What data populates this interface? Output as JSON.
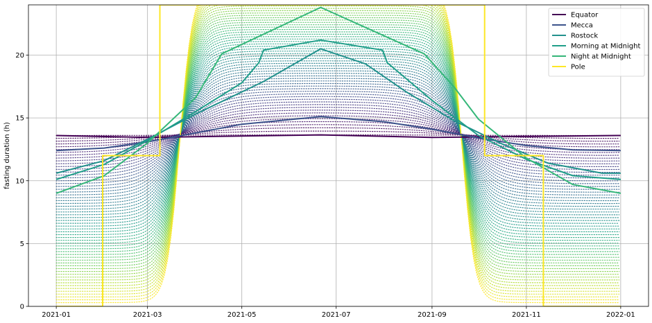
{
  "chart_data": {
    "type": "line",
    "title": "",
    "xlabel": "",
    "ylabel": "fasting duration (h)",
    "xlim": [
      "2020-12-14",
      "2022-01-19"
    ],
    "ylim": [
      0,
      24
    ],
    "grid": true,
    "legend_position": "top-right",
    "x_ticks": [
      "2021-01",
      "2021-03",
      "2021-05",
      "2021-07",
      "2021-09",
      "2021-11",
      "2022-01"
    ],
    "y_ticks": [
      0,
      5,
      10,
      15,
      20
    ],
    "background_dotted_latitudes": {
      "description_free": true,
      "count": 60,
      "from_value_at_jan1": 13.6,
      "to_value_at_jan1": 0.3,
      "colormap": "viridis"
    },
    "series": [
      {
        "name": "Equator",
        "color": "#440154",
        "x": [
          "2021-01-01",
          "2021-03-01",
          "2021-06-21",
          "2021-09-01",
          "2022-01-01"
        ],
        "y": [
          13.6,
          13.45,
          13.65,
          13.45,
          13.6
        ]
      },
      {
        "name": "Mecca",
        "color": "#3b528b",
        "x": [
          "2021-01-01",
          "2021-02-01",
          "2021-03-01",
          "2021-04-01",
          "2021-05-01",
          "2021-06-21",
          "2021-08-01",
          "2021-09-01",
          "2021-10-01",
          "2021-11-01",
          "2021-12-01",
          "2022-01-01"
        ],
        "y": [
          12.4,
          12.6,
          13.1,
          13.8,
          14.5,
          15.1,
          14.7,
          14.1,
          13.4,
          12.8,
          12.45,
          12.4
        ]
      },
      {
        "name": "Rostock",
        "color": "#21918c",
        "x": [
          "2021-01-01",
          "2021-02-01",
          "2021-03-01",
          "2021-04-01",
          "2021-05-15",
          "2021-06-21",
          "2021-07-20",
          "2021-08-15",
          "2021-09-15",
          "2021-10-15",
          "2021-11-15",
          "2021-12-20",
          "2022-01-01"
        ],
        "y": [
          10.6,
          11.6,
          13.3,
          15.3,
          17.9,
          20.5,
          19.3,
          17.1,
          14.8,
          13.0,
          11.4,
          10.6,
          10.6
        ]
      },
      {
        "name": "Morning at Midnight",
        "color": "#1f9e89",
        "x": [
          "2021-01-01",
          "2021-02-01",
          "2021-03-01",
          "2021-04-01",
          "2021-05-01",
          "2021-05-12",
          "2021-05-15",
          "2021-06-21",
          "2021-07-31",
          "2021-08-03",
          "2021-09-01",
          "2021-10-01",
          "2021-11-01",
          "2021-12-01",
          "2022-01-01"
        ],
        "y": [
          10.1,
          11.3,
          13.2,
          15.5,
          17.8,
          19.4,
          20.4,
          21.2,
          20.4,
          19.4,
          16.4,
          13.6,
          11.7,
          10.4,
          10.1
        ]
      },
      {
        "name": "Night at Midnight",
        "color": "#35b779",
        "x": [
          "2021-01-01",
          "2021-02-01",
          "2021-03-01",
          "2021-04-01",
          "2021-04-18",
          "2021-06-21",
          "2021-08-27",
          "2021-09-15",
          "2021-10-01",
          "2021-11-01",
          "2021-12-01",
          "2022-01-01"
        ],
        "y": [
          9.0,
          10.4,
          13.0,
          16.6,
          20.1,
          23.8,
          20.1,
          17.5,
          14.9,
          11.8,
          9.7,
          9.0
        ]
      },
      {
        "name": "Pole",
        "color": "#fde725",
        "x": [
          "2021-01-01",
          "2021-01-31",
          "2021-01-31",
          "2021-02-26",
          "2021-02-26",
          "2021-03-09",
          "2021-03-09",
          "2021-10-05",
          "2021-10-05",
          "2021-11-12",
          "2021-11-12",
          "2022-01-01"
        ],
        "y": [
          0,
          0,
          12,
          12,
          12,
          12,
          24,
          24,
          12,
          12,
          0,
          0
        ]
      }
    ]
  }
}
